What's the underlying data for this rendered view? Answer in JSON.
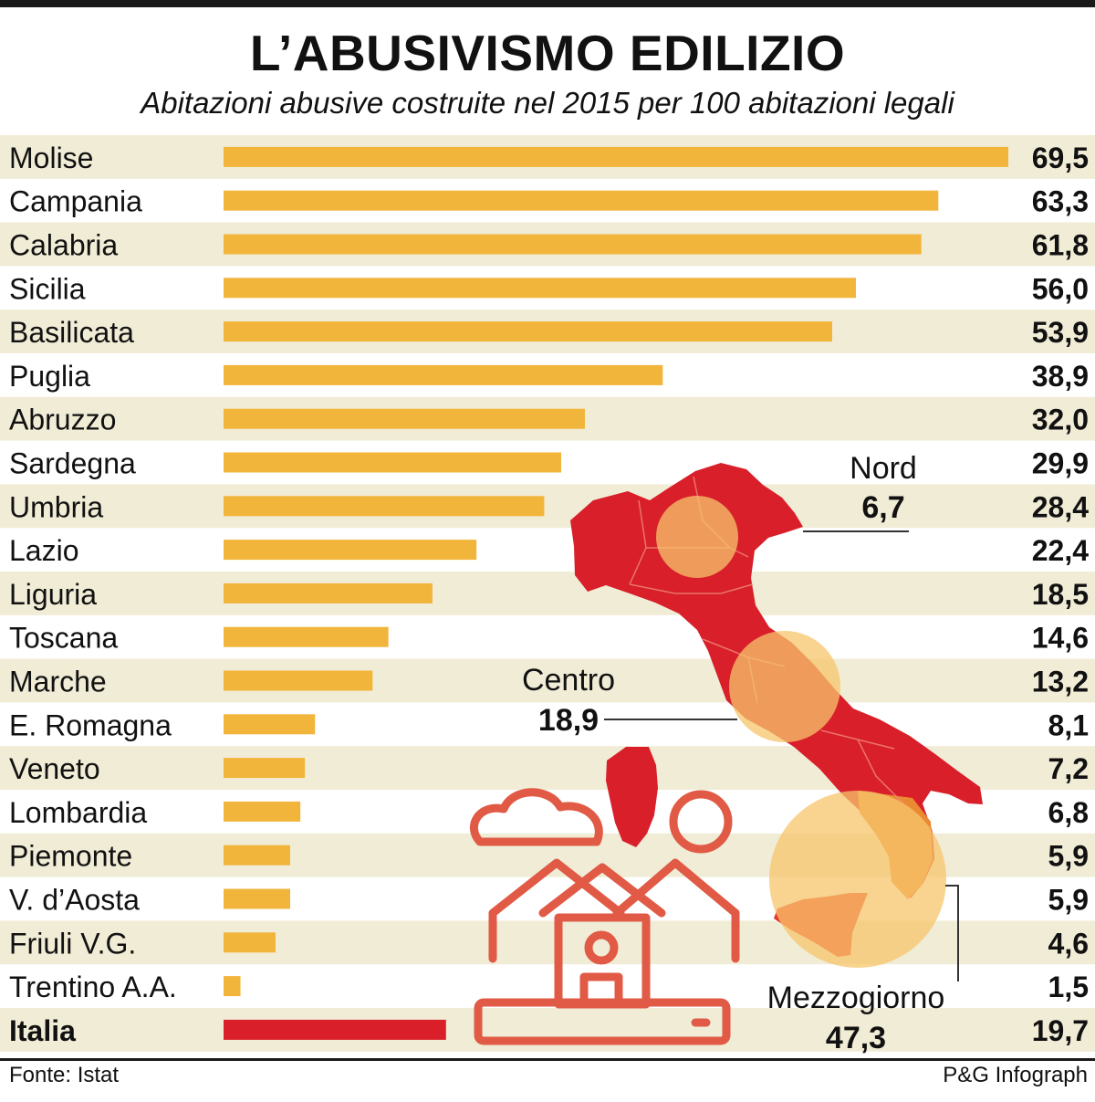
{
  "title": "L’ABUSIVISMO EDILIZIO",
  "subtitle": "Abitazioni abusive costruite nel 2015 per 100 abitazioni legali",
  "footer": {
    "source": "Fonte: Istat",
    "credit": "P&G Infograph"
  },
  "colors": {
    "bar": "#f2b53b",
    "total_bar": "#d9202a",
    "stripe": "#f1ecd6",
    "map_red": "#d81f2a",
    "map_orange": "#ea8a32",
    "circle": "#f7c56c",
    "icon": "#e05a45"
  },
  "chart_data": {
    "type": "bar",
    "orientation": "horizontal",
    "title": "L’ABUSIVISMO EDILIZIO",
    "subtitle": "Abitazioni abusive costruite nel 2015 per 100 abitazioni legali",
    "categories": [
      "Molise",
      "Campania",
      "Calabria",
      "Sicilia",
      "Basilicata",
      "Puglia",
      "Abruzzo",
      "Sardegna",
      "Umbria",
      "Lazio",
      "Liguria",
      "Toscana",
      "Marche",
      "E. Romagna",
      "Veneto",
      "Lombardia",
      "Piemonte",
      "V. d’Aosta",
      "Friuli V.G.",
      "Trentino A.A.",
      "Italia"
    ],
    "values": [
      69.5,
      63.3,
      61.8,
      56.0,
      53.9,
      38.9,
      32.0,
      29.9,
      28.4,
      22.4,
      18.5,
      14.6,
      13.2,
      8.1,
      7.2,
      6.8,
      5.9,
      5.9,
      4.6,
      1.5,
      19.7
    ],
    "value_labels": [
      "69,5",
      "63,3",
      "61,8",
      "56,0",
      "53,9",
      "38,9",
      "32,0",
      "29,9",
      "28,4",
      "22,4",
      "18,5",
      "14,6",
      "13,2",
      "8,1",
      "7,2",
      "6,8",
      "5,9",
      "5,9",
      "4,6",
      "1,5",
      "19,7"
    ],
    "highlight_category": "Italia",
    "xlim": [
      0,
      69.5
    ],
    "grid": false,
    "legend": "none",
    "areas": [
      {
        "name": "Nord",
        "value": 6.7,
        "value_label": "6,7"
      },
      {
        "name": "Centro",
        "value": 18.9,
        "value_label": "18,9"
      },
      {
        "name": "Mezzogiorno",
        "value": 47.3,
        "value_label": "47,3"
      }
    ]
  }
}
